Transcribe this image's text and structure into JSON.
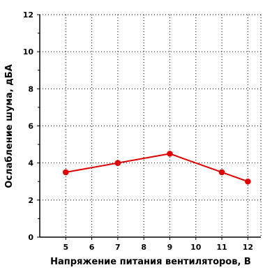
{
  "chart_data": {
    "type": "line",
    "title": "",
    "xlabel": "Напряжение питания вентиляторов, В",
    "ylabel": "Ослабление шума, дБА",
    "xlim": [
      4,
      12.5
    ],
    "ylim": [
      0,
      12
    ],
    "x_ticks": [
      5,
      6,
      7,
      8,
      9,
      10,
      11,
      12
    ],
    "y_ticks": [
      0,
      2,
      4,
      6,
      8,
      10,
      12
    ],
    "grid": true,
    "grid_style": "dotted",
    "legend": "none",
    "series": [
      {
        "x": [
          5,
          7,
          9,
          11,
          12
        ],
        "values": [
          3.5,
          4.0,
          4.5,
          3.5,
          3.0
        ],
        "color": "#e00000",
        "marker": "circle"
      }
    ]
  },
  "colors": {
    "background": "#ffffff",
    "axis": "#000000",
    "grid": "#000000",
    "series": "#e00000"
  }
}
